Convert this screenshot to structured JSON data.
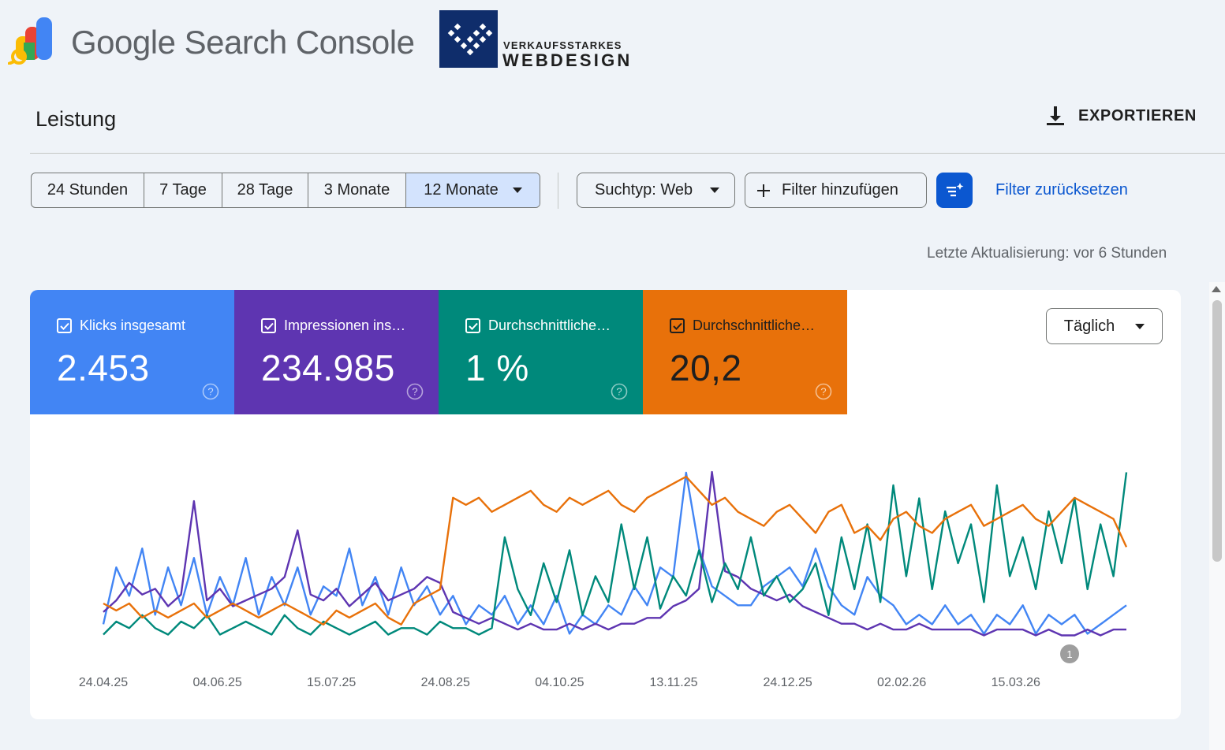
{
  "app": {
    "title_google": "Google",
    "title_rest": "Search Console"
  },
  "brand": {
    "line1": "VERKAUFSSTARKES",
    "line2": "WEBDESIGN"
  },
  "page": {
    "title": "Leistung",
    "export_label": "EXPORTIEREN"
  },
  "date_ranges": {
    "items": [
      "24 Stunden",
      "7 Tage",
      "28 Tage",
      "3 Monate"
    ],
    "selected": "12 Monate"
  },
  "filters": {
    "search_type": "Suchtyp: Web",
    "add_filter": "Filter hinzufügen",
    "reset": "Filter zurücksetzen"
  },
  "last_update": "Letzte Aktualisierung: vor 6 Stunden",
  "metrics": [
    {
      "label": "Klicks insgesamt",
      "value": "2.453",
      "color": "#4285f4",
      "checked": true
    },
    {
      "label": "Impressionen ins…",
      "value": "234.985",
      "color": "#5e35b1",
      "checked": true
    },
    {
      "label": "Durchschnittliche…",
      "value": "1 %",
      "color": "#00897b",
      "checked": true
    },
    {
      "label": "Durchschnittliche…",
      "value": "20,2",
      "color": "#e8710a",
      "checked": true
    }
  ],
  "granularity": "Täglich",
  "annotation_marker": "1",
  "chart_data": {
    "type": "line",
    "x_ticks": [
      "24.04.25",
      "04.06.25",
      "15.07.25",
      "24.08.25",
      "04.10.25",
      "13.11.25",
      "24.12.25",
      "02.02.26",
      "15.03.26"
    ],
    "x_range": [
      "2025-04-24",
      "2026-04-23"
    ],
    "y_axis_labels": "hidden",
    "grid": false,
    "series": [
      {
        "name": "Klicks insgesamt",
        "color": "#4285f4",
        "values": [
          4,
          10,
          7,
          12,
          5,
          10,
          6,
          11,
          5,
          9,
          6,
          11,
          5,
          9,
          6,
          10,
          5,
          8,
          7,
          12,
          6,
          9,
          5,
          10,
          6,
          8,
          5,
          7,
          4,
          6,
          5,
          7,
          4,
          6,
          4,
          7,
          3,
          5,
          4,
          6,
          5,
          8,
          6,
          10,
          9,
          20,
          12,
          8,
          7,
          6,
          6,
          8,
          9,
          10,
          8,
          12,
          8,
          6,
          5,
          9,
          7,
          6,
          4,
          5,
          4,
          6,
          4,
          5,
          3,
          5,
          4,
          6,
          3,
          5,
          4,
          5,
          3,
          4,
          5,
          6
        ]
      },
      {
        "name": "Impressionen insgesamt",
        "color": "#5e35b1",
        "values": [
          6,
          8,
          11,
          9,
          10,
          7,
          9,
          25,
          8,
          10,
          7,
          8,
          9,
          10,
          12,
          20,
          9,
          8,
          10,
          7,
          9,
          11,
          8,
          9,
          10,
          12,
          11,
          6,
          5,
          4,
          5,
          4,
          3,
          4,
          3,
          3,
          4,
          3,
          4,
          3,
          4,
          4,
          5,
          5,
          7,
          8,
          10,
          30,
          13,
          12,
          10,
          9,
          8,
          9,
          7,
          6,
          5,
          4,
          4,
          3,
          4,
          3,
          3,
          4,
          3,
          3,
          3,
          3,
          2,
          3,
          3,
          3,
          2,
          3,
          2,
          2,
          3,
          2,
          3,
          3
        ]
      },
      {
        "name": "Durchschnittliche CTR",
        "color": "#00897b",
        "values": [
          3,
          5,
          4,
          6,
          4,
          3,
          5,
          4,
          6,
          3,
          4,
          5,
          4,
          3,
          6,
          4,
          3,
          5,
          4,
          3,
          4,
          5,
          3,
          4,
          4,
          3,
          5,
          4,
          4,
          3,
          4,
          18,
          10,
          6,
          14,
          8,
          16,
          6,
          12,
          8,
          20,
          10,
          18,
          7,
          12,
          9,
          16,
          8,
          14,
          10,
          18,
          9,
          12,
          8,
          10,
          14,
          6,
          18,
          10,
          20,
          8,
          26,
          12,
          24,
          10,
          22,
          14,
          20,
          8,
          26,
          12,
          18,
          10,
          22,
          14,
          24,
          10,
          20,
          12,
          28
        ]
      },
      {
        "name": "Durchschnittliche Position",
        "color": "#e8710a",
        "values": [
          20,
          19,
          20,
          18,
          19,
          18,
          19,
          20,
          18,
          19,
          20,
          19,
          18,
          19,
          20,
          19,
          18,
          17,
          19,
          18,
          19,
          20,
          18,
          17,
          20,
          21,
          22,
          35,
          34,
          35,
          33,
          34,
          35,
          36,
          34,
          33,
          35,
          34,
          35,
          36,
          34,
          33,
          35,
          36,
          37,
          38,
          36,
          34,
          35,
          33,
          32,
          31,
          33,
          34,
          32,
          30,
          33,
          34,
          30,
          31,
          29,
          32,
          33,
          31,
          30,
          32,
          33,
          34,
          31,
          32,
          33,
          34,
          32,
          31,
          33,
          35,
          34,
          33,
          32,
          28
        ]
      }
    ]
  }
}
